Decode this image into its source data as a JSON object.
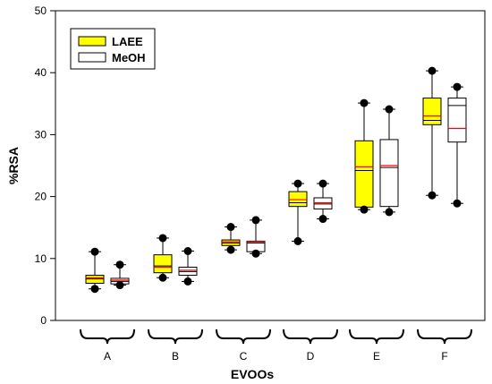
{
  "chart_data": {
    "type": "box",
    "xlabel": "EVOOs",
    "ylabel": "%RSA",
    "ylim": [
      0,
      50
    ],
    "yticks": [
      0,
      10,
      20,
      30,
      40,
      50
    ],
    "grid": false,
    "legend_position": "top-left",
    "categories": [
      "A",
      "B",
      "C",
      "D",
      "E",
      "F"
    ],
    "series": [
      {
        "name": "LAEE",
        "fill": "#ffff00",
        "boxes": [
          {
            "category": "A",
            "whisker_low": 5.1,
            "q1": 6.0,
            "median": 6.7,
            "mean": 6.9,
            "q3": 7.3,
            "whisker_high": 11.1
          },
          {
            "category": "B",
            "whisker_low": 6.9,
            "q1": 7.7,
            "median": 8.8,
            "mean": 8.6,
            "q3": 10.6,
            "whisker_high": 13.3
          },
          {
            "category": "C",
            "whisker_low": 11.4,
            "q1": 12.1,
            "median": 12.5,
            "mean": 12.7,
            "q3": 13.0,
            "whisker_high": 15.1
          },
          {
            "category": "D",
            "whisker_low": 12.8,
            "q1": 18.4,
            "median": 19.0,
            "mean": 19.5,
            "q3": 20.8,
            "whisker_high": 22.1
          },
          {
            "category": "E",
            "whisker_low": 17.9,
            "q1": 18.3,
            "median": 24.2,
            "mean": 24.8,
            "q3": 29.0,
            "whisker_high": 35.1
          },
          {
            "category": "F",
            "whisker_low": 20.2,
            "q1": 31.6,
            "median": 32.3,
            "mean": 33.0,
            "q3": 35.9,
            "whisker_high": 40.3
          }
        ]
      },
      {
        "name": "MeOH",
        "fill": "#ffffff",
        "boxes": [
          {
            "category": "A",
            "whisker_low": 5.7,
            "q1": 5.9,
            "median": 6.3,
            "mean": 6.5,
            "q3": 6.8,
            "whisker_high": 9.0
          },
          {
            "category": "B",
            "whisker_low": 6.3,
            "q1": 7.3,
            "median": 7.9,
            "mean": 8.1,
            "q3": 8.6,
            "whisker_high": 11.2
          },
          {
            "category": "C",
            "whisker_low": 10.8,
            "q1": 11.1,
            "median": 12.5,
            "mean": 12.7,
            "q3": 12.8,
            "whisker_high": 16.2
          },
          {
            "category": "D",
            "whisker_low": 16.4,
            "q1": 18.0,
            "median": 18.8,
            "mean": 19.0,
            "q3": 19.8,
            "whisker_high": 22.1
          },
          {
            "category": "E",
            "whisker_low": 17.5,
            "q1": 18.4,
            "median": 24.7,
            "mean": 25.0,
            "q3": 29.2,
            "whisker_high": 34.1
          },
          {
            "category": "F",
            "whisker_low": 18.9,
            "q1": 28.8,
            "median": 34.7,
            "mean": 31.0,
            "q3": 35.9,
            "whisker_high": 37.7
          }
        ]
      }
    ],
    "colors": {
      "median_line": "#000000",
      "mean_line": "#ff0000",
      "outlier_dot": "#000000"
    }
  }
}
